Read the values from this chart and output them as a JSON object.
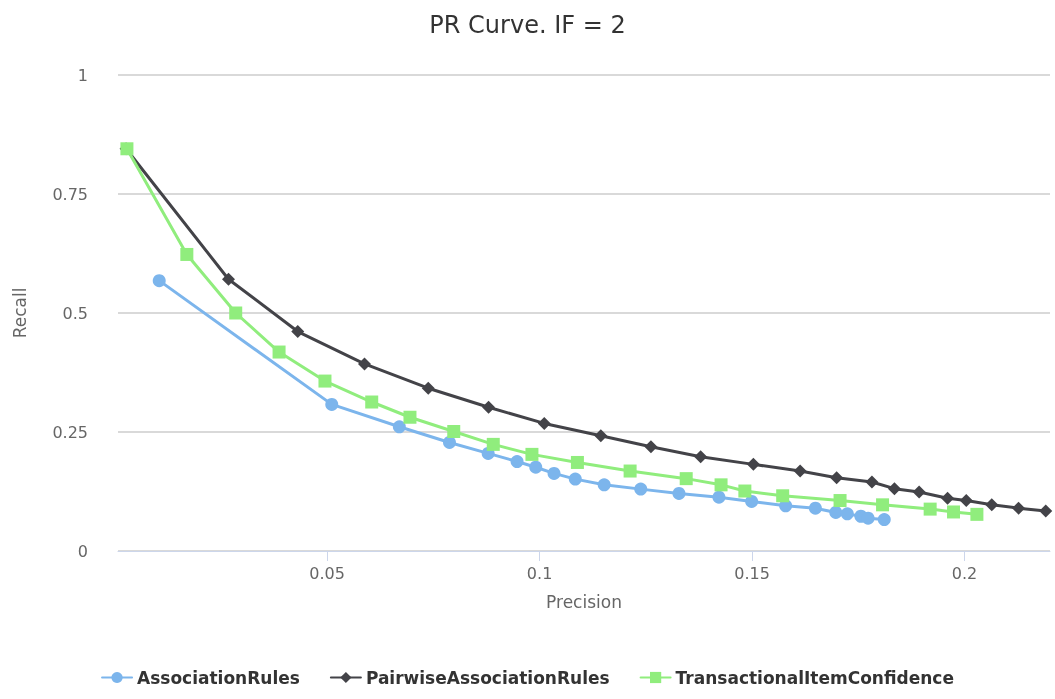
{
  "chart_data": {
    "type": "line",
    "title": "PR Curve. IF = 2",
    "xlabel": "Precision",
    "ylabel": "Recall",
    "xlim": [
      0.0008,
      0.2201
    ],
    "xticks": [
      0.05,
      0.1,
      0.15,
      0.2
    ],
    "ylim": [
      0,
      1
    ],
    "yticks": [
      0,
      0.25,
      0.5,
      0.75,
      1
    ],
    "grid": "y",
    "legend": "bottom",
    "line_style": "solid",
    "series": [
      {
        "name": "AssociationRules",
        "color": "#7cb5ec",
        "marker": "circle",
        "x": [
          0.0105,
          0.0511,
          0.067,
          0.0788,
          0.0879,
          0.0947,
          0.0991,
          0.1034,
          0.1084,
          0.1152,
          0.1238,
          0.1328,
          0.1422,
          0.1499,
          0.1579,
          0.1649,
          0.1697,
          0.1724,
          0.1756,
          0.1773,
          0.1811
        ],
        "values": [
          0.568,
          0.308,
          0.261,
          0.228,
          0.205,
          0.188,
          0.176,
          0.163,
          0.151,
          0.139,
          0.13,
          0.121,
          0.113,
          0.104,
          0.095,
          0.09,
          0.081,
          0.078,
          0.073,
          0.069,
          0.066
        ]
      },
      {
        "name": "PairwiseAssociationRules",
        "color": "#434348",
        "marker": "diamond",
        "x": [
          0.0027,
          0.0268,
          0.0431,
          0.0588,
          0.0738,
          0.088,
          0.1011,
          0.1144,
          0.1262,
          0.1379,
          0.1503,
          0.1613,
          0.1699,
          0.1782,
          0.1835,
          0.1893,
          0.196,
          0.2004,
          0.2064,
          0.2127,
          0.2191
        ],
        "values": [
          0.845,
          0.571,
          0.461,
          0.393,
          0.342,
          0.302,
          0.268,
          0.242,
          0.219,
          0.198,
          0.182,
          0.168,
          0.154,
          0.145,
          0.131,
          0.124,
          0.111,
          0.106,
          0.097,
          0.09,
          0.084
        ]
      },
      {
        "name": "TransactionalItemConfidence",
        "color": "#90ed7d",
        "marker": "square",
        "x": [
          0.0029,
          0.017,
          0.0285,
          0.0387,
          0.0495,
          0.0605,
          0.0695,
          0.0798,
          0.0891,
          0.0982,
          0.1089,
          0.1213,
          0.1345,
          0.1427,
          0.1483,
          0.1572,
          0.1707,
          0.1807,
          0.1919,
          0.1974,
          0.2029
        ],
        "values": [
          0.845,
          0.623,
          0.5,
          0.418,
          0.357,
          0.313,
          0.281,
          0.251,
          0.224,
          0.203,
          0.186,
          0.168,
          0.152,
          0.139,
          0.126,
          0.116,
          0.106,
          0.097,
          0.088,
          0.082,
          0.077
        ]
      }
    ]
  }
}
